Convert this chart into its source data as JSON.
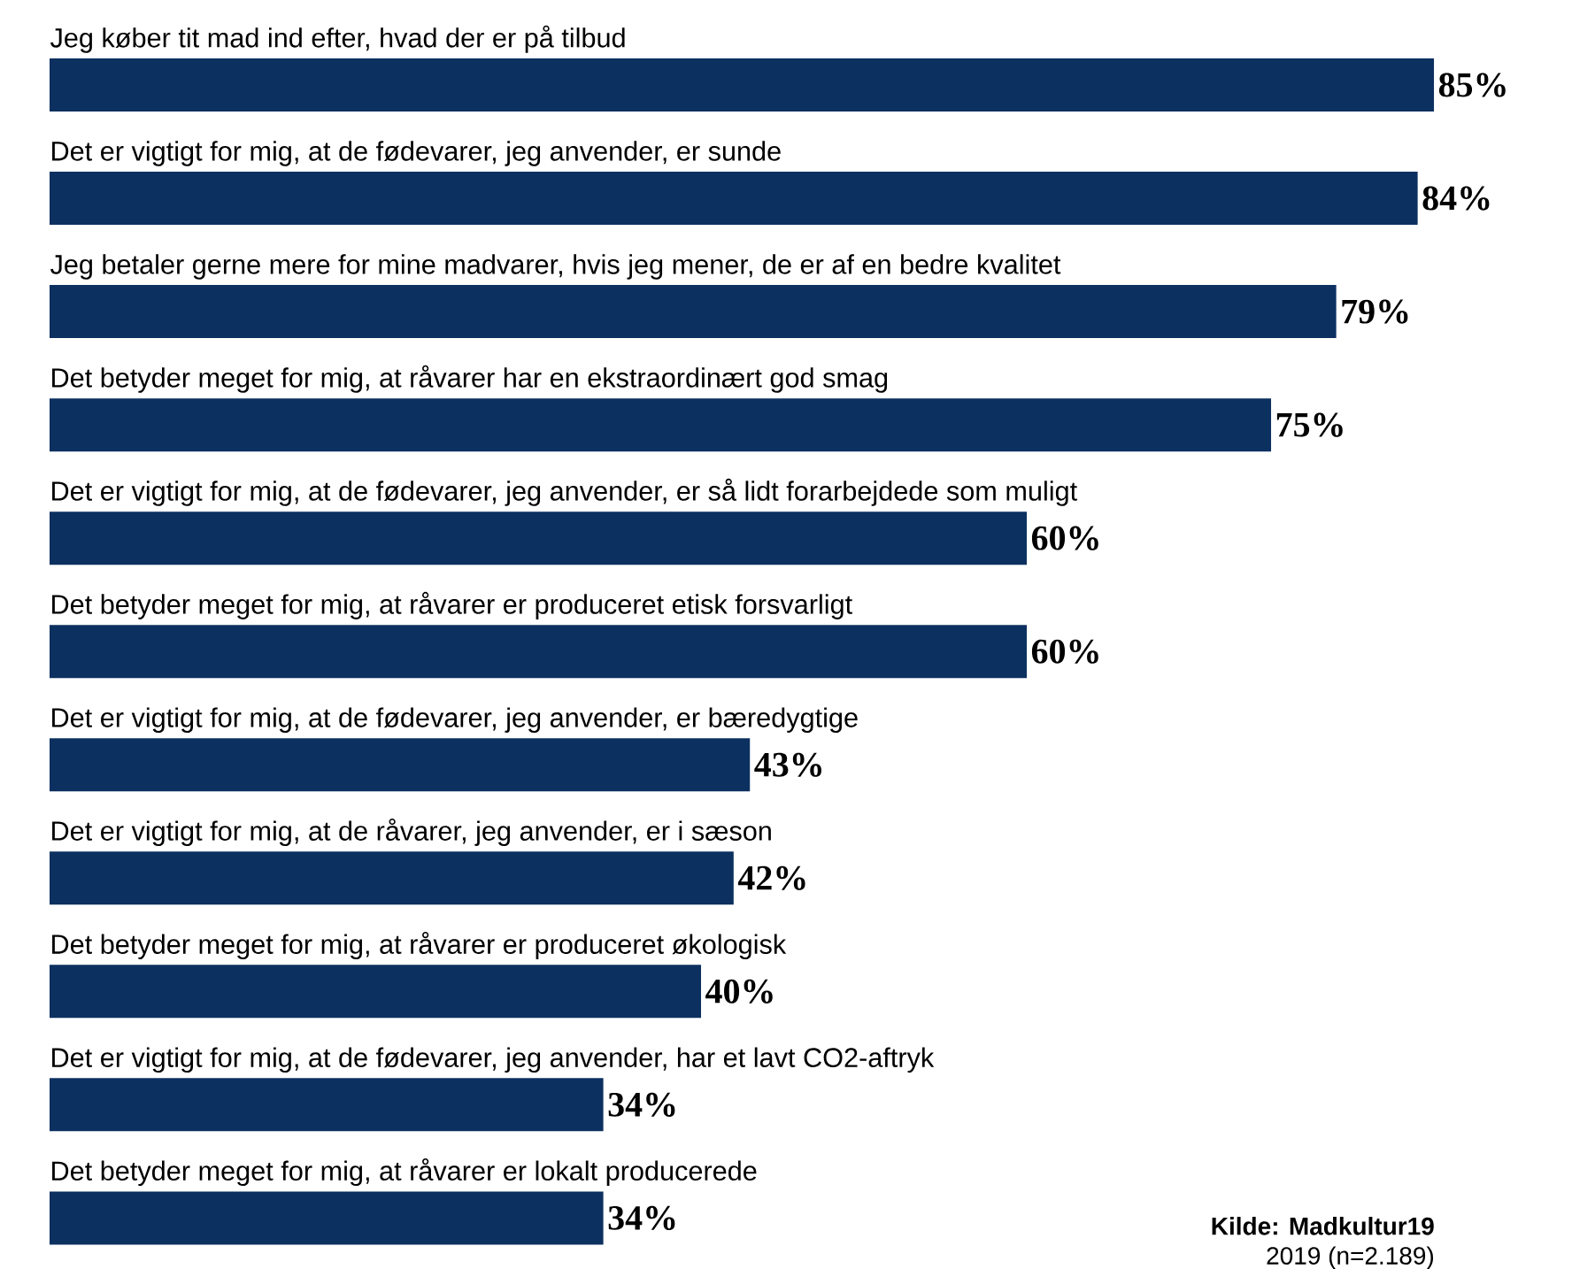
{
  "chart_data": {
    "type": "bar",
    "orientation": "horizontal",
    "categories": [
      "Jeg køber tit mad ind efter, hvad der er på tilbud",
      "Det er vigtigt for mig, at de fødevarer, jeg anvender, er sunde",
      "Jeg betaler gerne mere for mine madvarer, hvis jeg mener, de er af en bedre kvalitet",
      "Det betyder meget for mig, at råvarer har en ekstraordinært god smag",
      "Det er vigtigt for mig, at de fødevarer, jeg anvender, er så lidt forarbejdede som muligt",
      "Det betyder meget for mig, at råvarer er produceret etisk forsvarligt",
      "Det er vigtigt for mig, at de fødevarer, jeg anvender, er bæredygtige",
      "Det er vigtigt for mig, at de råvarer, jeg anvender, er i sæson",
      "Det betyder meget for mig, at råvarer er produceret økologisk",
      "Det er vigtigt for mig, at de fødevarer, jeg anvender, har et lavt CO2-aftryk",
      "Det betyder meget for mig, at råvarer er lokalt producerede"
    ],
    "values": [
      85,
      84,
      79,
      75,
      60,
      60,
      43,
      42,
      40,
      34,
      34
    ],
    "value_labels": [
      "85%",
      "84%",
      "79%",
      "75%",
      "60%",
      "60%",
      "43%",
      "42%",
      "40%",
      "34%",
      "34%"
    ],
    "color": "#0c3060",
    "annotations": [
      "Kilde: Madkultur19",
      "2019 (n=2.189)"
    ]
  }
}
